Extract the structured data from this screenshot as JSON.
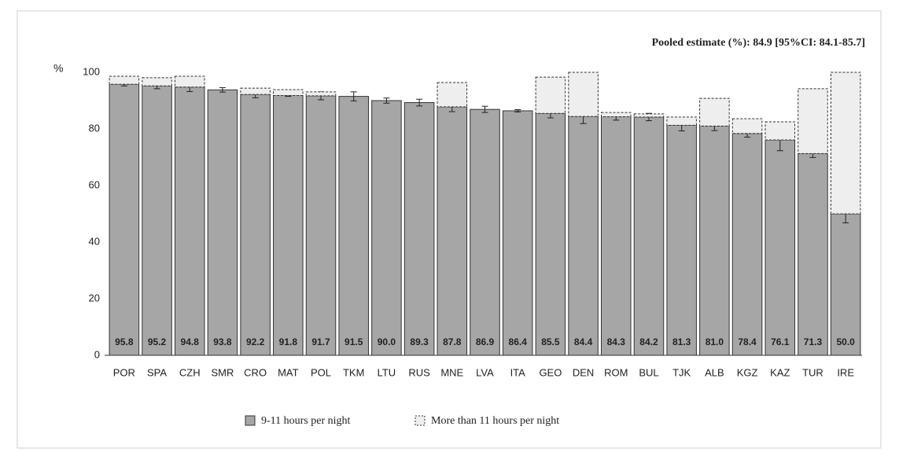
{
  "chart_data": {
    "type": "stacked_bar",
    "annotation": "Pooled estimate (%): 84.9 [95%CI: 84.1-85.7]",
    "ylabel": "%",
    "categories": [
      "POR",
      "SPA",
      "CZH",
      "SMR",
      "CRO",
      "MAT",
      "POL",
      "TKM",
      "LTU",
      "RUS",
      "MNE",
      "LVA",
      "ITA",
      "GEO",
      "DEN",
      "ROM",
      "BUL",
      "TJK",
      "ALB",
      "KGZ",
      "KAZ",
      "TUR",
      "IRE"
    ],
    "series": [
      {
        "name": "9-11 hours per night",
        "color": "#a6a6a6",
        "values": [
          95.8,
          95.2,
          94.8,
          93.8,
          92.2,
          91.8,
          91.7,
          91.5,
          90.0,
          89.3,
          87.8,
          86.9,
          86.4,
          85.5,
          84.4,
          84.3,
          84.2,
          81.3,
          81.0,
          78.4,
          76.1,
          71.3,
          50.0
        ],
        "value_labels": [
          "95.8",
          "95.2",
          "94.8",
          "93.8",
          "92.2",
          "91.8",
          "91.7",
          "91.5",
          "90.0",
          "89.3",
          "87.8",
          "86.9",
          "86.4",
          "85.5",
          "84.4",
          "84.3",
          "84.2",
          "81.3",
          "81.0",
          "78.4",
          "76.1",
          "71.3",
          "50.0"
        ],
        "errors": [
          0.6,
          1.0,
          1.6,
          0.8,
          1.2,
          0.3,
          1.4,
          1.6,
          0.9,
          1.2,
          1.7,
          1.1,
          0.4,
          1.6,
          2.5,
          1.2,
          1.3,
          2.0,
          1.6,
          1.3,
          3.8,
          1.4,
          3.2
        ]
      },
      {
        "name": "More than 11 hours per night",
        "color": "#eeeeee",
        "values": [
          2.8,
          2.9,
          3.8,
          0,
          2.2,
          2.1,
          1.4,
          0,
          0,
          0,
          8.6,
          0,
          0,
          12.8,
          15.6,
          1.5,
          1.1,
          2.9,
          9.8,
          5.2,
          6.4,
          22.9,
          50.0
        ]
      }
    ],
    "ylim": [
      0,
      100
    ],
    "yticks": [
      0,
      20,
      40,
      60,
      80,
      100
    ],
    "grid": false
  }
}
